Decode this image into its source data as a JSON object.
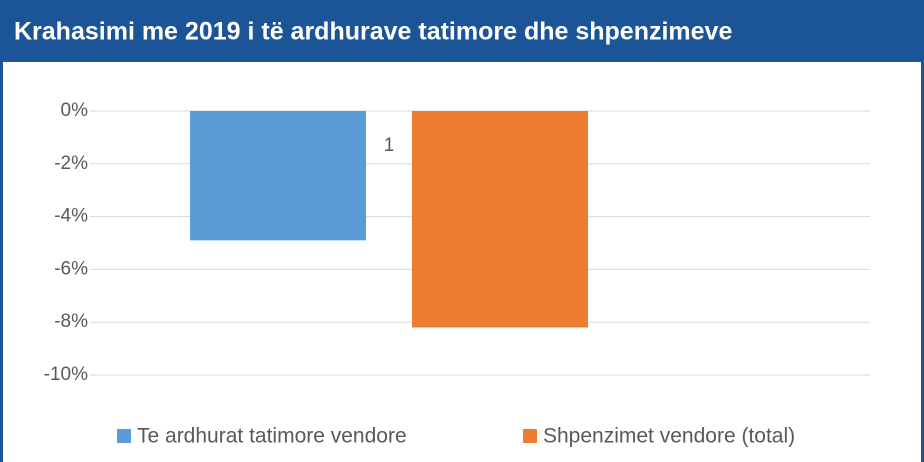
{
  "chart_data": {
    "type": "bar",
    "title": "Krahasimi me 2019 i të ardhurave tatimore dhe shpenzimeve",
    "categories": [
      "1"
    ],
    "series": [
      {
        "name": "Te ardhurat tatimore vendore",
        "color": "#5b9bd5",
        "values": [
          -4.9
        ]
      },
      {
        "name": "Shpenzimet vendore (total)",
        "color": "#ed7d31",
        "values": [
          -8.2
        ]
      }
    ],
    "ylim": [
      -10,
      0
    ],
    "yticks": [
      {
        "value": 0,
        "label": "0%"
      },
      {
        "value": -2,
        "label": "-2%"
      },
      {
        "value": -4,
        "label": "-4%"
      },
      {
        "value": -6,
        "label": "-6%"
      },
      {
        "value": -8,
        "label": "-8%"
      },
      {
        "value": -10,
        "label": "-10%"
      }
    ],
    "grid": true,
    "legend": "bottom"
  }
}
